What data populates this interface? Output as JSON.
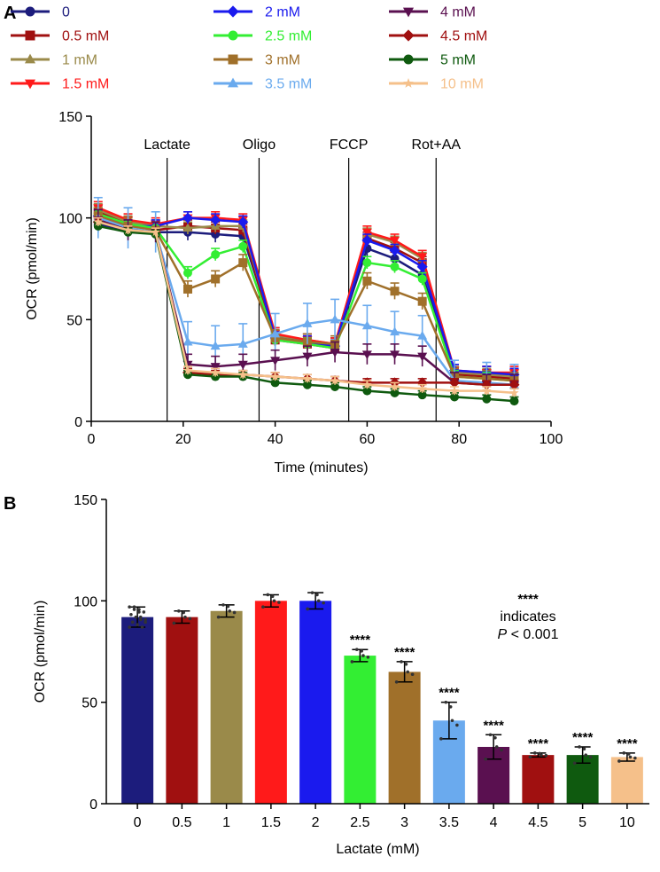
{
  "chart_data": [
    {
      "panel": "A",
      "type": "line",
      "xlabel": "Time (minutes)",
      "ylabel": "OCR (pmol/min)",
      "xlim": [
        0,
        100
      ],
      "ylim": [
        0,
        150
      ],
      "xticks": [
        0,
        20,
        40,
        60,
        80,
        100
      ],
      "yticks": [
        0,
        50,
        100,
        150
      ],
      "x": [
        1.5,
        8,
        14,
        21,
        27,
        33,
        40,
        47,
        53,
        60,
        66,
        72,
        79,
        86,
        92
      ],
      "events": [
        {
          "label": "Lactate",
          "x": 16.5
        },
        {
          "label": "Oligo",
          "x": 36.5
        },
        {
          "label": "FCCP",
          "x": 56
        },
        {
          "label": "Rot+AA",
          "x": 75
        }
      ],
      "series": [
        {
          "name": "0",
          "color": "#1c1c7c",
          "marker": "circle",
          "values": [
            97,
            94,
            93,
            93,
            92,
            91,
            42,
            39,
            37,
            85,
            80,
            72,
            24,
            23,
            22
          ],
          "err": 4
        },
        {
          "name": "0.5 mM",
          "color": "#a01010",
          "marker": "square",
          "values": [
            103,
            97,
            94,
            96,
            95,
            94,
            40,
            38,
            36,
            90,
            85,
            78,
            23,
            22,
            21
          ],
          "err": 3
        },
        {
          "name": "1 mM",
          "color": "#9a8a4a",
          "marker": "triangle-up",
          "values": [
            104,
            98,
            96,
            95,
            96,
            96,
            42,
            40,
            38,
            92,
            88,
            80,
            24,
            23,
            22
          ],
          "err": 3
        },
        {
          "name": "1.5 mM",
          "color": "#ff1a1a",
          "marker": "triangle-down",
          "values": [
            105,
            99,
            97,
            100,
            100,
            99,
            43,
            40,
            38,
            93,
            89,
            81,
            25,
            24,
            24
          ],
          "err": 3
        },
        {
          "name": "2 mM",
          "color": "#1a1aee",
          "marker": "diamond",
          "values": [
            101,
            96,
            96,
            100,
            99,
            98,
            41,
            39,
            37,
            89,
            84,
            76,
            25,
            24,
            23
          ],
          "err": 3
        },
        {
          "name": "2.5 mM",
          "color": "#33ee33",
          "marker": "circle",
          "values": [
            102,
            97,
            95,
            73,
            82,
            86,
            40,
            38,
            36,
            78,
            76,
            70,
            22,
            21,
            20
          ],
          "err": 3
        },
        {
          "name": "3 mM",
          "color": "#a0702a",
          "marker": "square",
          "values": [
            101,
            96,
            94,
            65,
            70,
            78,
            41,
            39,
            38,
            69,
            64,
            59,
            22,
            21,
            20
          ],
          "err": 4
        },
        {
          "name": "3.5 mM",
          "color": "#6aaaee",
          "marker": "triangle-up",
          "values": [
            100,
            95,
            93,
            39,
            37,
            38,
            43,
            48,
            50,
            47,
            44,
            42,
            20,
            19,
            18
          ],
          "err": 10
        },
        {
          "name": "4 mM",
          "color": "#5a1050",
          "marker": "triangle-down",
          "values": [
            99,
            94,
            93,
            28,
            27,
            28,
            30,
            32,
            34,
            33,
            33,
            32,
            19,
            18,
            18
          ],
          "err": 5
        },
        {
          "name": "4.5 mM",
          "color": "#a01010",
          "marker": "diamond",
          "values": [
            98,
            94,
            93,
            24,
            23,
            23,
            22,
            21,
            20,
            19,
            19,
            19,
            19,
            18,
            18
          ],
          "err": 2
        },
        {
          "name": "5 mM",
          "color": "#0f5a0f",
          "marker": "circle",
          "values": [
            96,
            93,
            92,
            23,
            22,
            22,
            19,
            18,
            17,
            15,
            14,
            13,
            12,
            11,
            10
          ],
          "err": 2
        },
        {
          "name": "10 mM",
          "color": "#f5c08a",
          "marker": "star",
          "values": [
            98,
            94,
            93,
            25,
            24,
            23,
            22,
            21,
            20,
            18,
            17,
            16,
            15,
            15,
            14
          ],
          "err": 2
        }
      ]
    },
    {
      "panel": "B",
      "type": "bar",
      "xlabel": "Lactate (mM)",
      "ylabel": "OCR (pmol/min)",
      "ylim": [
        0,
        150
      ],
      "yticks": [
        0,
        50,
        100,
        150
      ],
      "categories": [
        "0",
        "0.5",
        "1",
        "1.5",
        "2",
        "2.5",
        "3",
        "3.5",
        "4",
        "4.5",
        "5",
        "10"
      ],
      "values": [
        92,
        92,
        95,
        100,
        100,
        73,
        65,
        41,
        28,
        24,
        24,
        23
      ],
      "errors": [
        5,
        3,
        3,
        3,
        4,
        3,
        5,
        9,
        6,
        1,
        4,
        2
      ],
      "colors": [
        "#1c1c7c",
        "#a01010",
        "#9a8a4a",
        "#ff1a1a",
        "#1a1aee",
        "#33ee33",
        "#a0702a",
        "#6aaaee",
        "#5a1050",
        "#a01010",
        "#0f5a0f",
        "#f5c08a"
      ],
      "significance": [
        "",
        "",
        "",
        "",
        "",
        "****",
        "****",
        "****",
        "****",
        "****",
        "****",
        "****"
      ],
      "annotation": {
        "line1": "****",
        "line2": "indicates",
        "line3_italic": "P",
        "line3_rest": " < 0.001"
      }
    }
  ],
  "labels": {
    "panel_a": "A",
    "panel_b": "B"
  }
}
